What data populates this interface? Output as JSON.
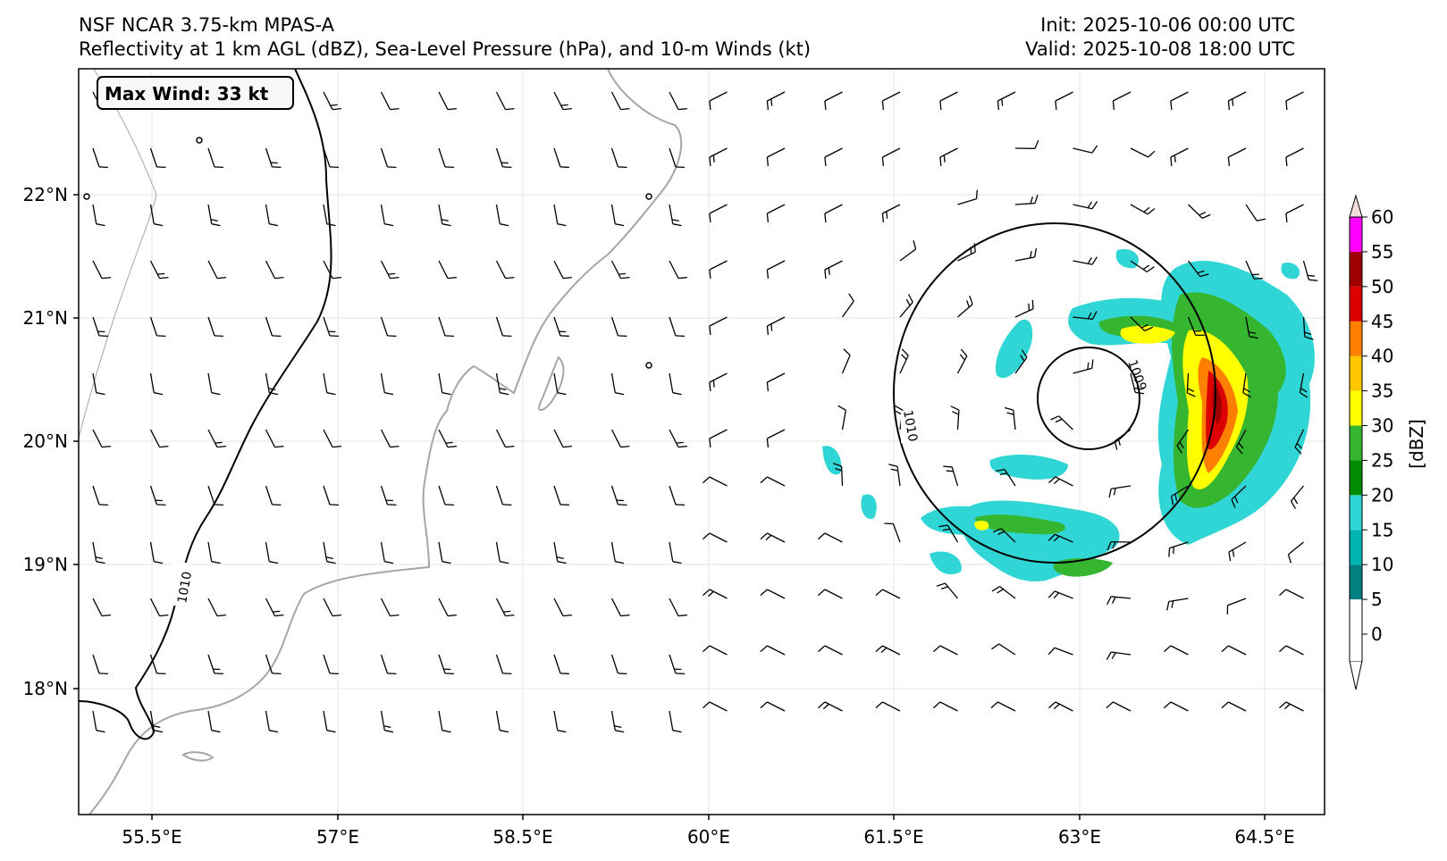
{
  "header": {
    "model": "NSF NCAR 3.75-km MPAS-A",
    "fields": "Reflectivity at 1 km AGL (dBZ), Sea-Level Pressure (hPa), and 10-m Winds (kt)",
    "init": "Init: 2025-10-06 00:00 UTC",
    "valid": "Valid: 2025-10-08 18:00 UTC"
  },
  "max_wind": "Max Wind: 33 kt",
  "axes": {
    "x_ticks": [
      "55.5°E",
      "57°E",
      "58.5°E",
      "60°E",
      "61.5°E",
      "63°E",
      "64.5°E"
    ],
    "y_ticks": [
      "22°N",
      "21°N",
      "20°N",
      "19°N",
      "18°N"
    ]
  },
  "isobar_labels": [
    "1010",
    "1010",
    "1009"
  ],
  "colorbar": {
    "label": "[dBZ]",
    "ticks": [
      "0",
      "5",
      "10",
      "15",
      "20",
      "25",
      "30",
      "35",
      "40",
      "45",
      "50",
      "55",
      "60"
    ],
    "colors": [
      "#ffffff",
      "#008080",
      "#00b4b4",
      "#30d5d5",
      "#008c00",
      "#36b530",
      "#ffff00",
      "#ffc800",
      "#ff8000",
      "#dc0000",
      "#a00000",
      "#ff00ff",
      "#f5dcdc"
    ]
  },
  "colors": {
    "coast": "#a6a6a6",
    "isobar": "#000000",
    "grid": "#e6e6e6"
  }
}
